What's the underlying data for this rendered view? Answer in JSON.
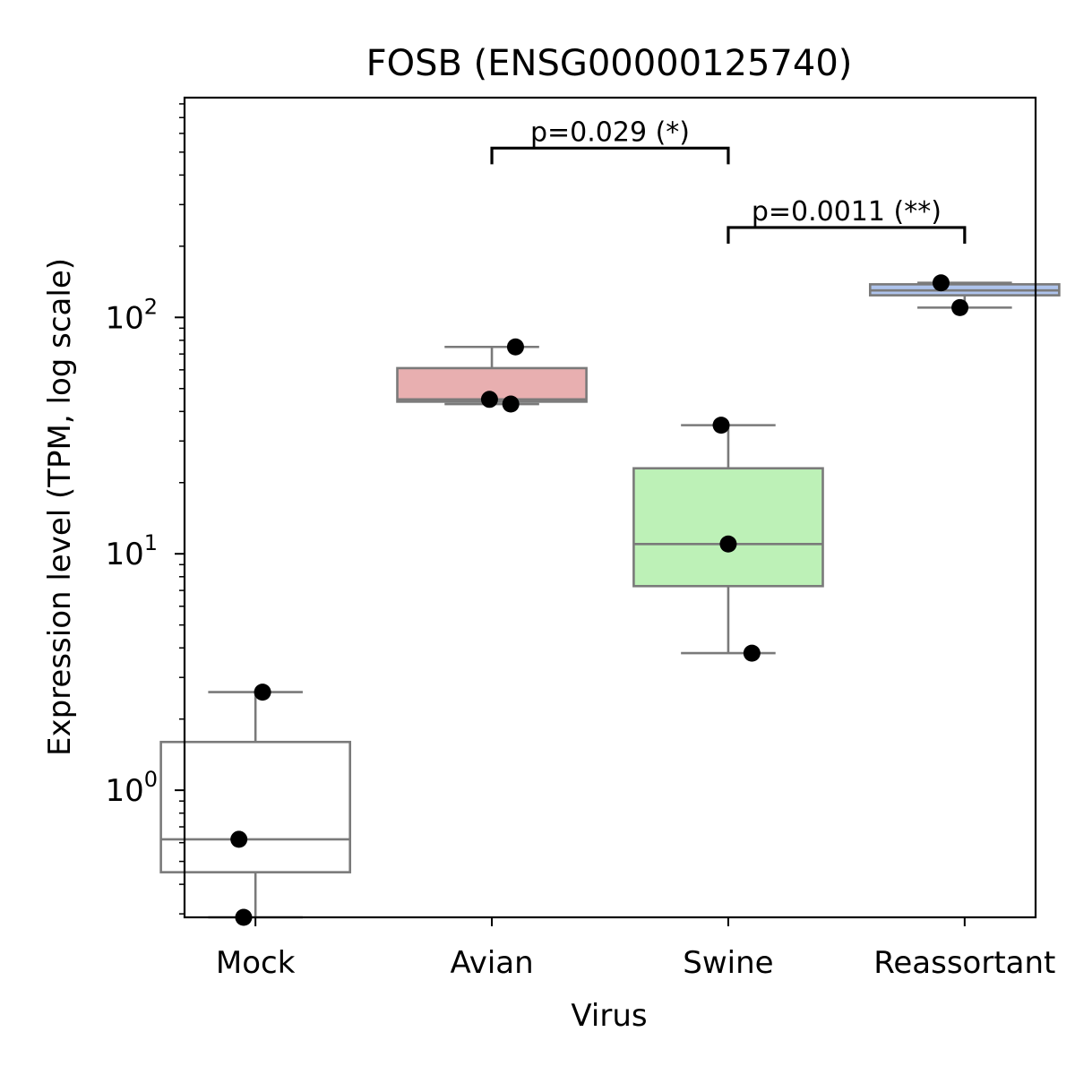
{
  "chart_data": {
    "type": "box",
    "title": "FOSB (ENSG00000125740)",
    "xlabel": "Virus",
    "ylabel": "Expression level (TPM, log scale)",
    "yscale": "log",
    "ylim": [
      0.29,
      850
    ],
    "yticks": [
      {
        "value": 1,
        "base": "10",
        "exp": "0"
      },
      {
        "value": 10,
        "base": "10",
        "exp": "1"
      },
      {
        "value": 100,
        "base": "10",
        "exp": "2"
      }
    ],
    "grid": false,
    "categories": [
      "Mock",
      "Avian",
      "Swine",
      "Reassortant"
    ],
    "boxes": [
      {
        "name": "Mock",
        "color": "#ffffff",
        "whisker_low": 0.29,
        "q1": 0.45,
        "median": 0.62,
        "q3": 1.6,
        "whisker_high": 2.6
      },
      {
        "name": "Avian",
        "color": "#e8afb0",
        "whisker_low": 43,
        "q1": 44,
        "median": 45,
        "q3": 61,
        "whisker_high": 75
      },
      {
        "name": "Swine",
        "color": "#bdf1b7",
        "whisker_low": 3.8,
        "q1": 7.3,
        "median": 11,
        "q3": 23,
        "whisker_high": 35
      },
      {
        "name": "Reassortant",
        "color": "#aec3ec",
        "whisker_low": 110,
        "q1": 124,
        "median": 130,
        "q3": 138,
        "whisker_high": 140
      }
    ],
    "points": [
      {
        "category": "Mock",
        "value": 2.6,
        "jitter": 0.03
      },
      {
        "category": "Mock",
        "value": 0.62,
        "jitter": -0.07
      },
      {
        "category": "Mock",
        "value": 0.29,
        "jitter": -0.05
      },
      {
        "category": "Avian",
        "value": 75,
        "jitter": 0.1
      },
      {
        "category": "Avian",
        "value": 45,
        "jitter": -0.01
      },
      {
        "category": "Avian",
        "value": 43,
        "jitter": 0.08
      },
      {
        "category": "Swine",
        "value": 35,
        "jitter": -0.03
      },
      {
        "category": "Swine",
        "value": 11,
        "jitter": 0.0
      },
      {
        "category": "Swine",
        "value": 3.8,
        "jitter": 0.1
      },
      {
        "category": "Reassortant",
        "value": 140,
        "jitter": -0.1
      },
      {
        "category": "Reassortant",
        "value": 110,
        "jitter": -0.02
      }
    ],
    "annotations": [
      {
        "from": "Avian",
        "to": "Swine",
        "y": 520,
        "label": "p=0.029 (*)"
      },
      {
        "from": "Swine",
        "to": "Reassortant",
        "y": 240,
        "label": "p=0.0011 (**)"
      }
    ]
  }
}
